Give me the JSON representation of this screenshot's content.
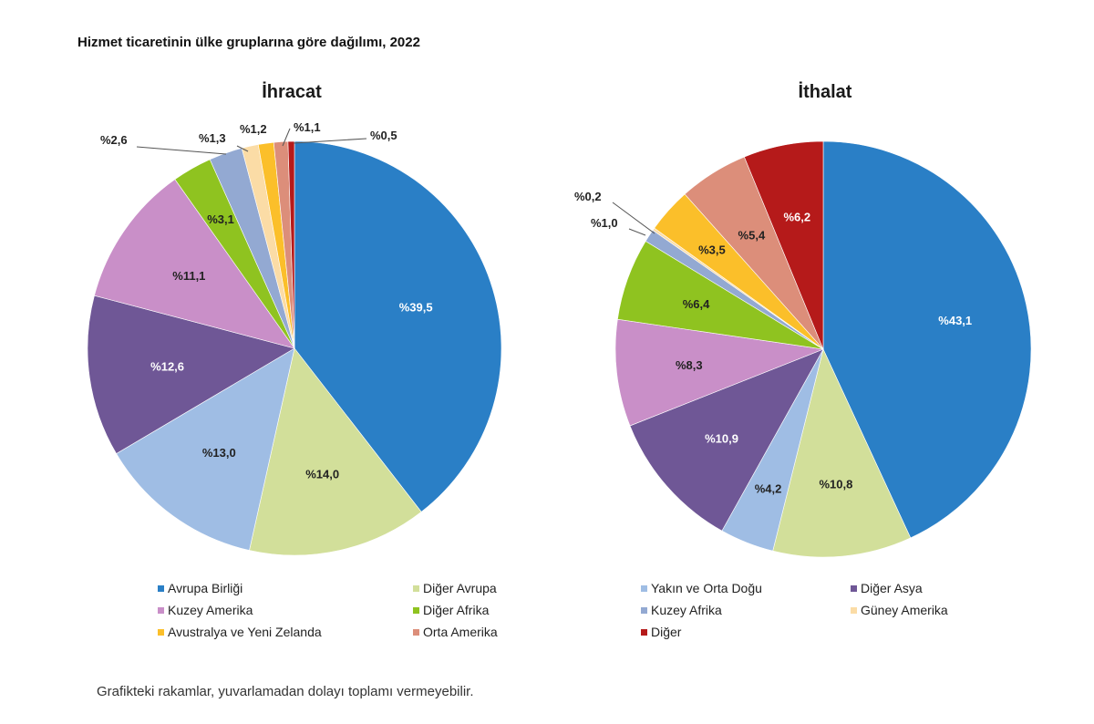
{
  "title": "Hizmet ticaretinin ülke gruplarına göre dağılımı, 2022",
  "footnote": "Grafikteki rakamlar, yuvarlamadan dolayı toplamı vermeyebilir.",
  "legend": [
    {
      "label": "Avrupa Birliği",
      "color": "#2a7fc6"
    },
    {
      "label": "Diğer Avrupa",
      "color": "#d2df9a"
    },
    {
      "label": "Yakın ve Orta Doğu",
      "color": "#9fbde4"
    },
    {
      "label": "Diğer Asya",
      "color": "#6f5796"
    },
    {
      "label": "Kuzey Amerika",
      "color": "#c98fc8"
    },
    {
      "label": "Diğer Afrika",
      "color": "#8fc320"
    },
    {
      "label": "Kuzey Afrika",
      "color": "#93a9d2"
    },
    {
      "label": "Güney Amerika",
      "color": "#fbdca6"
    },
    {
      "label": "Avustralya ve Yeni Zelanda",
      "color": "#fbbf2a"
    },
    {
      "label": "Orta Amerika",
      "color": "#dc8e7a"
    },
    {
      "label": "Diğer",
      "color": "#b51a1a"
    }
  ],
  "chart_data": [
    {
      "type": "pie",
      "title": "İhracat",
      "categories": [
        "Avrupa Birliği",
        "Diğer Avrupa",
        "Yakın ve Orta Doğu",
        "Diğer Asya",
        "Kuzey Amerika",
        "Diğer Afrika",
        "Kuzey Afrika",
        "Güney Amerika",
        "Avustralya ve Yeni Zelanda",
        "Orta Amerika",
        "Diğer"
      ],
      "values": [
        39.5,
        14.0,
        13.0,
        12.6,
        11.1,
        3.1,
        2.6,
        1.3,
        1.2,
        1.1,
        0.5
      ],
      "labels": [
        "%39,5",
        "%14,0",
        "%13,0",
        "%12,6",
        "%11,1",
        "%3,1",
        "%2,6",
        "%1,3",
        "%1,2",
        "%1,1",
        "%0,5"
      ],
      "unit": "%",
      "start": "12 o'clock",
      "direction": "clockwise"
    },
    {
      "type": "pie",
      "title": "İthalat",
      "categories": [
        "Avrupa Birliği",
        "Diğer Avrupa",
        "Yakın ve Orta Doğu",
        "Diğer Asya",
        "Kuzey Amerika",
        "Diğer Afrika",
        "Kuzey Afrika",
        "Güney Amerika",
        "Avustralya ve Yeni Zelanda",
        "Orta Amerika",
        "Diğer"
      ],
      "values": [
        43.1,
        10.8,
        4.2,
        10.9,
        8.3,
        6.4,
        1.0,
        0.2,
        3.5,
        5.4,
        6.2
      ],
      "labels": [
        "%43,1",
        "%10,8",
        "%4,2",
        "%10,9",
        "%8,3",
        "%6,4",
        "%1,0",
        "%0,2",
        "%3,5",
        "%5,4",
        "%6,2"
      ],
      "unit": "%",
      "start": "12 o'clock",
      "direction": "clockwise"
    }
  ]
}
